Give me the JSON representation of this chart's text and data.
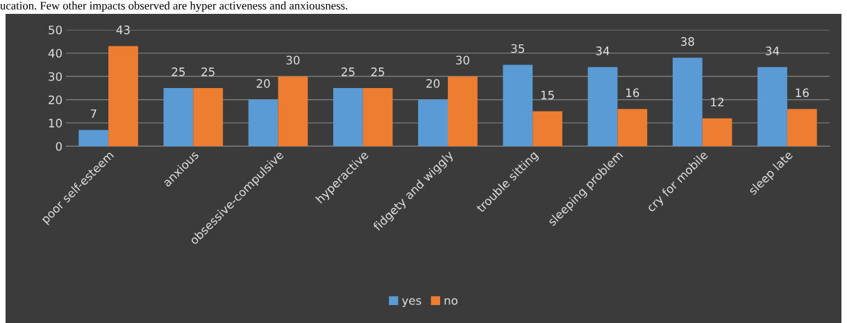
{
  "chart_data": {
    "type": "bar",
    "annotations": [
      "ucation. Few other impacts observed are hyper activeness and anxiousness."
    ],
    "categories": [
      "poor self-esteem",
      "anxious",
      "obsessive-compulsive",
      "hyperactive",
      "fidgety and wiggly",
      "trouble sitting",
      "sleeping problem",
      "cry for mobile",
      "sleep late"
    ],
    "series": [
      {
        "name": "yes",
        "color": "#5b9bd5",
        "values": [
          7,
          25,
          20,
          25,
          20,
          35,
          34,
          38,
          34
        ]
      },
      {
        "name": "no",
        "color": "#ed7d31",
        "values": [
          43,
          25,
          30,
          25,
          30,
          15,
          16,
          12,
          16
        ]
      }
    ],
    "ylim": [
      0,
      50
    ],
    "yticks": [
      0,
      10,
      20,
      30,
      40,
      50
    ],
    "grid": "y",
    "legend": "bottom",
    "data_labels": true
  }
}
